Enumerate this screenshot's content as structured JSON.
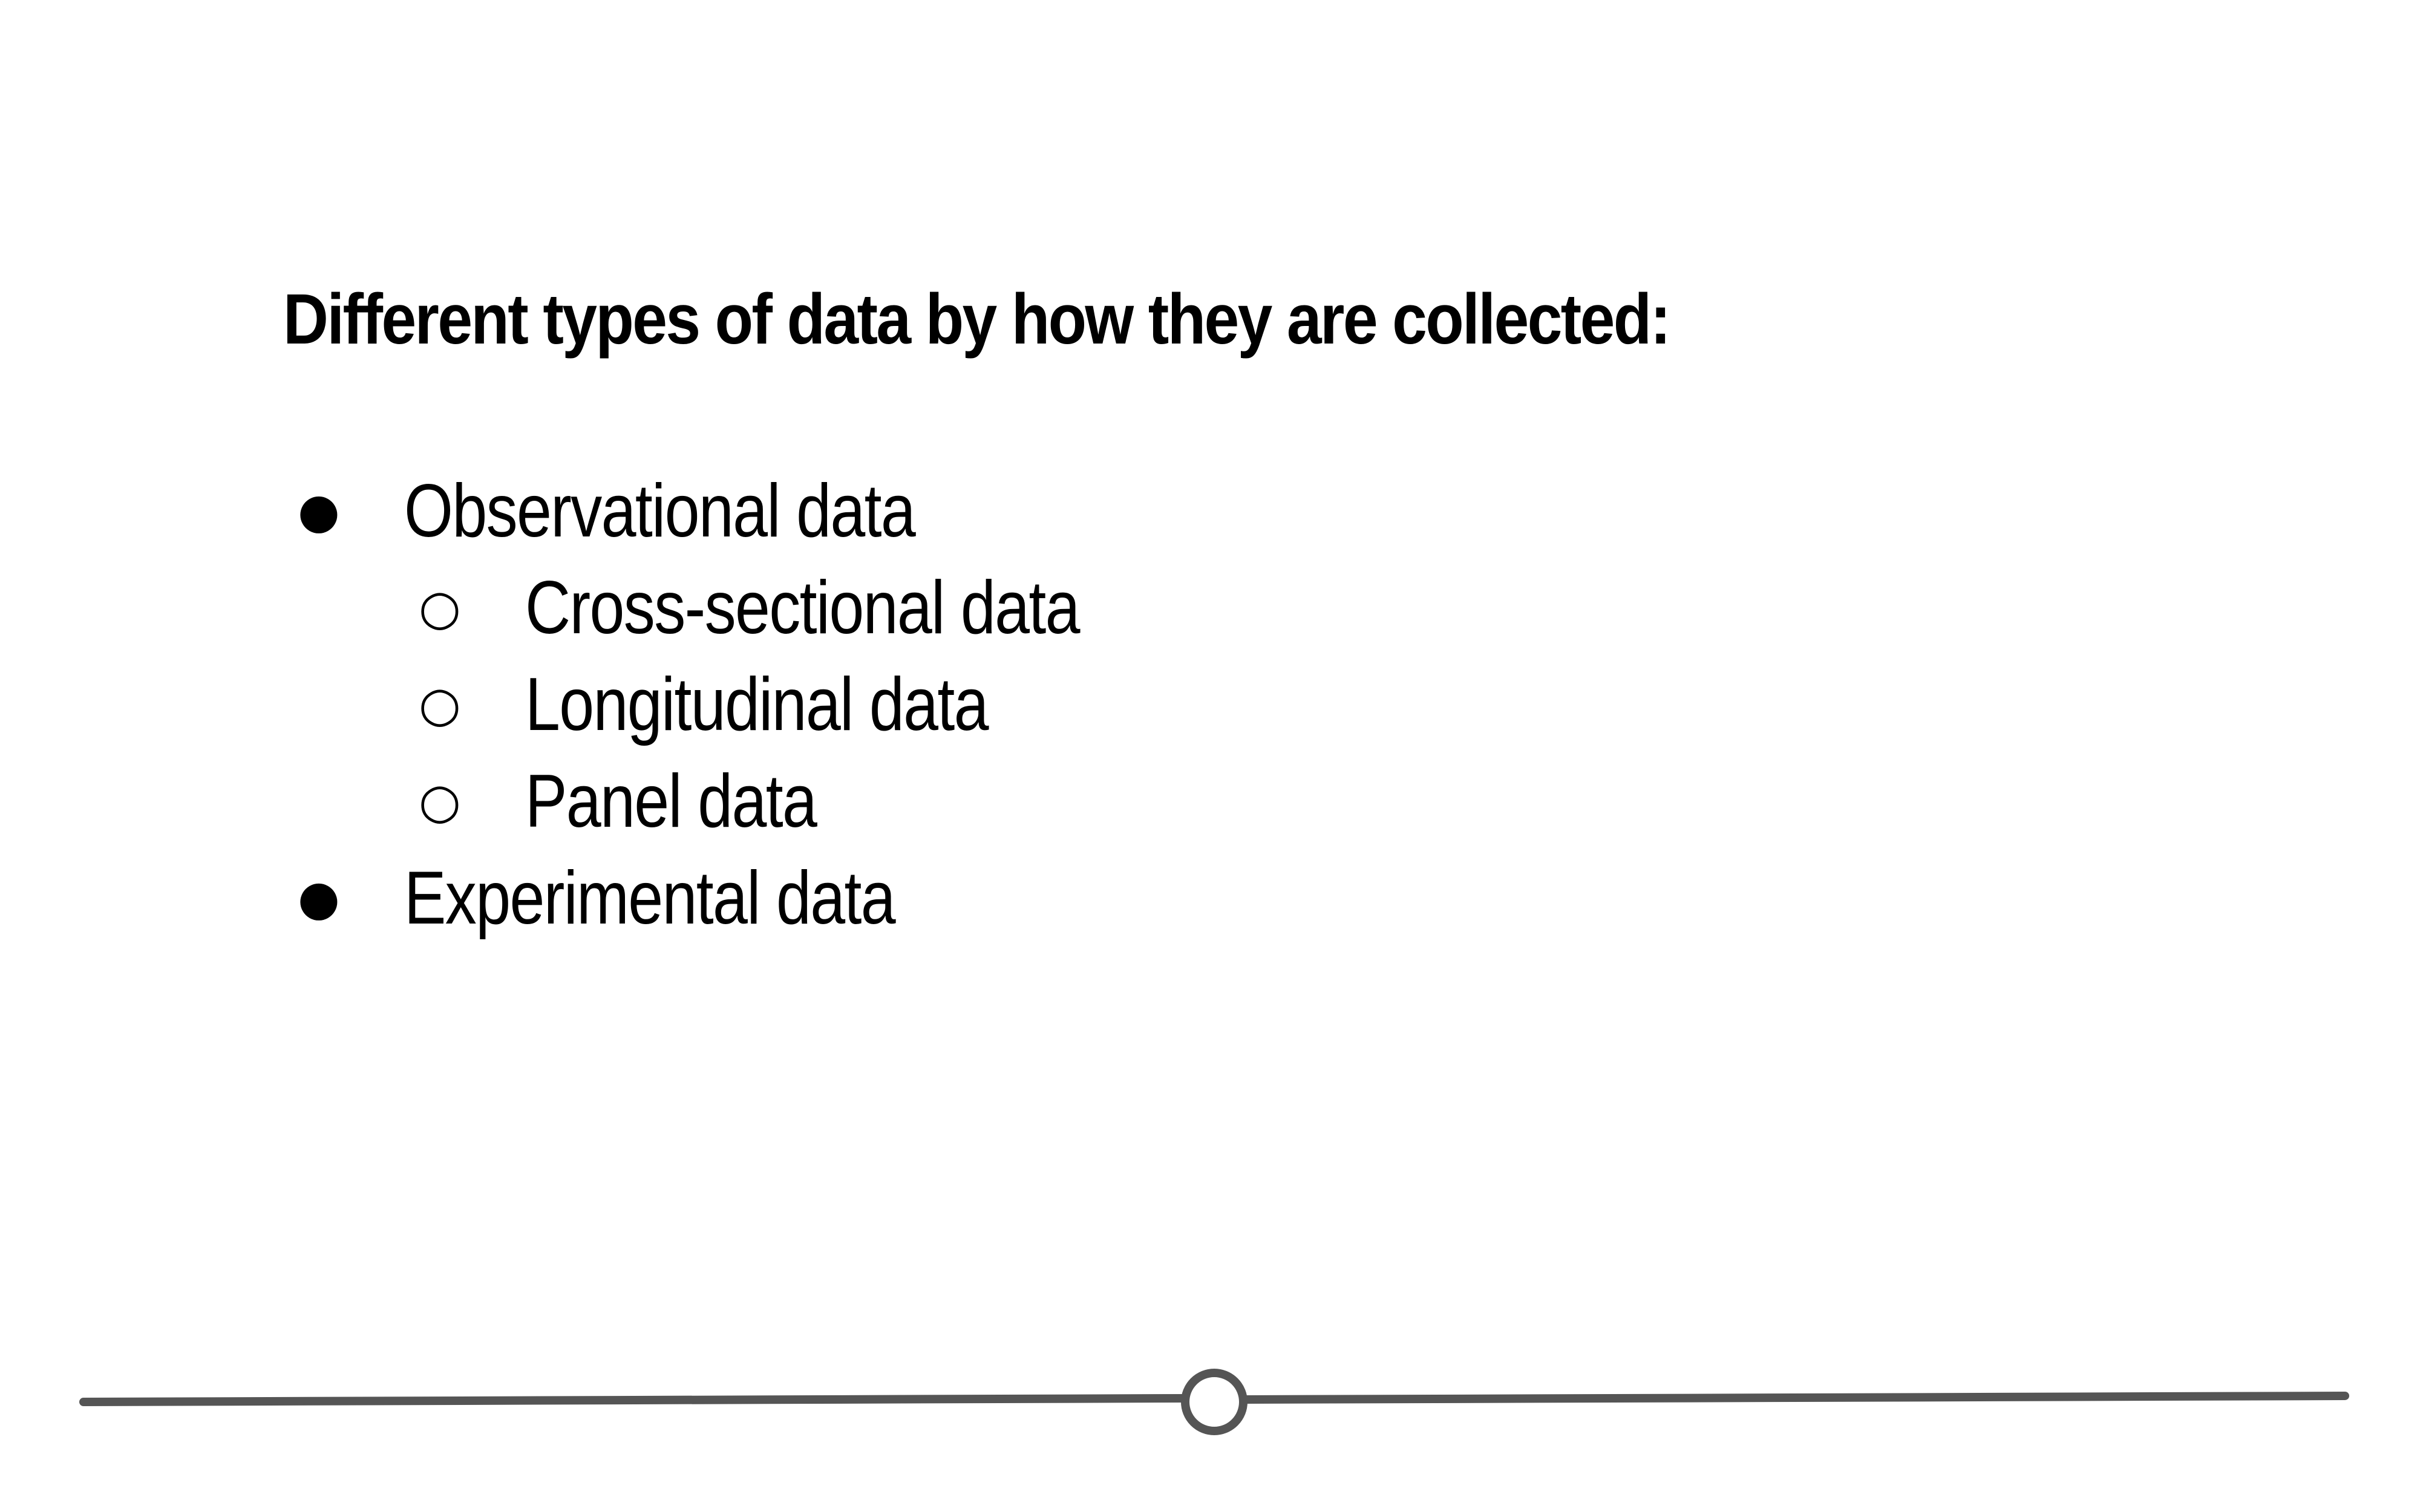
{
  "slide": {
    "heading": "Different types of data by how they are collected:",
    "items": [
      {
        "level": 1,
        "bullet": "●",
        "text": "Observational data"
      },
      {
        "level": 2,
        "bullet": "○",
        "text": "Cross-sectional data"
      },
      {
        "level": 2,
        "bullet": "○",
        "text": "Longitudinal data"
      },
      {
        "level": 2,
        "bullet": "○",
        "text": "Panel data"
      },
      {
        "level": 1,
        "bullet": "●",
        "text": "Experimental data"
      }
    ]
  },
  "timeline": {
    "line_color": "#555555",
    "marker_icon": "hollow-circle-icon"
  }
}
